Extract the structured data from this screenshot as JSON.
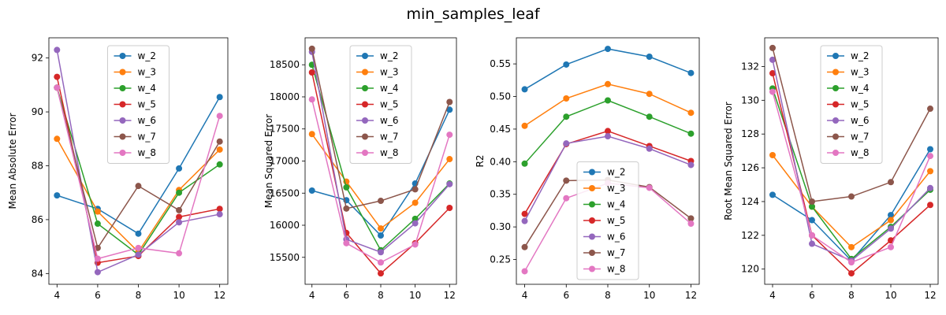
{
  "figure": {
    "title": "min_samples_leaf"
  },
  "colors": {
    "w_2": "#1f77b4",
    "w_3": "#ff7f0e",
    "w_4": "#2ca02c",
    "w_5": "#d62728",
    "w_6": "#9467bd",
    "w_7": "#8c564b",
    "w_8": "#e377c2"
  },
  "chart_data": [
    {
      "type": "line",
      "title": "",
      "xlabel": "",
      "ylabel": "Mean Absolute Error",
      "x": [
        4,
        6,
        8,
        10,
        12
      ],
      "xticks": [
        4,
        6,
        8,
        10,
        12
      ],
      "xlim": [
        3.6,
        12.4
      ],
      "ylim": [
        83.6,
        92.75
      ],
      "yticks": [
        84,
        86,
        88,
        90,
        92
      ],
      "legend": "upper-center",
      "series": [
        {
          "name": "w_2",
          "values": [
            86.9,
            86.4,
            85.48,
            87.9,
            90.55
          ]
        },
        {
          "name": "w_3",
          "values": [
            89.0,
            86.3,
            84.8,
            87.1,
            88.6
          ]
        },
        {
          "name": "w_4",
          "values": [
            90.9,
            85.85,
            84.7,
            87.0,
            88.05
          ]
        },
        {
          "name": "w_5",
          "values": [
            91.3,
            84.4,
            84.65,
            86.1,
            86.4
          ]
        },
        {
          "name": "w_6",
          "values": [
            92.3,
            84.05,
            84.7,
            85.9,
            86.2
          ]
        },
        {
          "name": "w_7",
          "values": [
            90.9,
            84.95,
            87.25,
            86.35,
            88.9
          ]
        },
        {
          "name": "w_8",
          "values": [
            90.9,
            84.55,
            84.95,
            84.75,
            89.85
          ]
        }
      ]
    },
    {
      "type": "line",
      "title": "",
      "xlabel": "",
      "ylabel": "Mean Squared Error",
      "x": [
        4,
        6,
        8,
        10,
        12
      ],
      "xticks": [
        4,
        6,
        8,
        10,
        12
      ],
      "xlim": [
        3.6,
        12.4
      ],
      "ylim": [
        15080,
        18920
      ],
      "yticks": [
        15500,
        16000,
        16500,
        17000,
        17500,
        18000,
        18500
      ],
      "legend": "upper-center",
      "series": [
        {
          "name": "w_2",
          "values": [
            16540,
            16390,
            15840,
            16650,
            17800
          ]
        },
        {
          "name": "w_3",
          "values": [
            17420,
            16680,
            15950,
            16350,
            17030
          ]
        },
        {
          "name": "w_4",
          "values": [
            18500,
            16590,
            15610,
            16100,
            16650
          ]
        },
        {
          "name": "w_5",
          "values": [
            18380,
            15880,
            15250,
            15720,
            16270
          ]
        },
        {
          "name": "w_6",
          "values": [
            18700,
            15780,
            15580,
            16030,
            16640
          ]
        },
        {
          "name": "w_7",
          "values": [
            18750,
            16260,
            16380,
            16560,
            17920
          ]
        },
        {
          "name": "w_8",
          "values": [
            17960,
            15720,
            15420,
            15700,
            17410
          ]
        }
      ]
    },
    {
      "type": "line",
      "title": "",
      "xlabel": "",
      "ylabel": "R2",
      "x": [
        4,
        6,
        8,
        10,
        12
      ],
      "xticks": [
        4,
        6,
        8,
        10,
        12
      ],
      "xlim": [
        3.6,
        12.4
      ],
      "ylim": [
        0.212,
        0.59
      ],
      "yticks": [
        0.25,
        0.3,
        0.35,
        0.4,
        0.45,
        0.5,
        0.55
      ],
      "legend": "lower-center",
      "series": [
        {
          "name": "w_2",
          "values": [
            0.511,
            0.549,
            0.573,
            0.561,
            0.536
          ]
        },
        {
          "name": "w_3",
          "values": [
            0.455,
            0.497,
            0.519,
            0.504,
            0.475
          ]
        },
        {
          "name": "w_4",
          "values": [
            0.397,
            0.469,
            0.494,
            0.469,
            0.443
          ]
        },
        {
          "name": "w_5",
          "values": [
            0.32,
            0.427,
            0.447,
            0.424,
            0.401
          ]
        },
        {
          "name": "w_6",
          "values": [
            0.309,
            0.428,
            0.439,
            0.42,
            0.395
          ]
        },
        {
          "name": "w_7",
          "values": [
            0.269,
            0.371,
            0.372,
            0.361,
            0.313
          ]
        },
        {
          "name": "w_8",
          "values": [
            0.232,
            0.344,
            0.367,
            0.36,
            0.305
          ]
        }
      ]
    },
    {
      "type": "line",
      "title": "",
      "xlabel": "",
      "ylabel": "Root Mean Squared Error",
      "x": [
        4,
        6,
        8,
        10,
        12
      ],
      "xticks": [
        4,
        6,
        8,
        10,
        12
      ],
      "xlim": [
        3.6,
        12.4
      ],
      "ylim": [
        119.1,
        133.7
      ],
      "yticks": [
        120,
        122,
        124,
        126,
        128,
        130,
        132
      ],
      "legend": "upper-center",
      "series": [
        {
          "name": "w_2",
          "values": [
            124.4,
            122.9,
            120.5,
            123.2,
            127.1
          ]
        },
        {
          "name": "w_3",
          "values": [
            126.75,
            123.7,
            121.3,
            122.9,
            125.8
          ]
        },
        {
          "name": "w_4",
          "values": [
            130.7,
            123.7,
            120.6,
            122.5,
            124.7
          ]
        },
        {
          "name": "w_5",
          "values": [
            131.6,
            122.0,
            119.75,
            121.7,
            123.8
          ]
        },
        {
          "name": "w_6",
          "values": [
            132.4,
            121.5,
            120.5,
            122.4,
            124.8
          ]
        },
        {
          "name": "w_7",
          "values": [
            133.1,
            124.0,
            124.3,
            125.15,
            129.5
          ]
        },
        {
          "name": "w_8",
          "values": [
            130.5,
            122.0,
            120.4,
            121.3,
            126.7
          ]
        }
      ]
    }
  ]
}
